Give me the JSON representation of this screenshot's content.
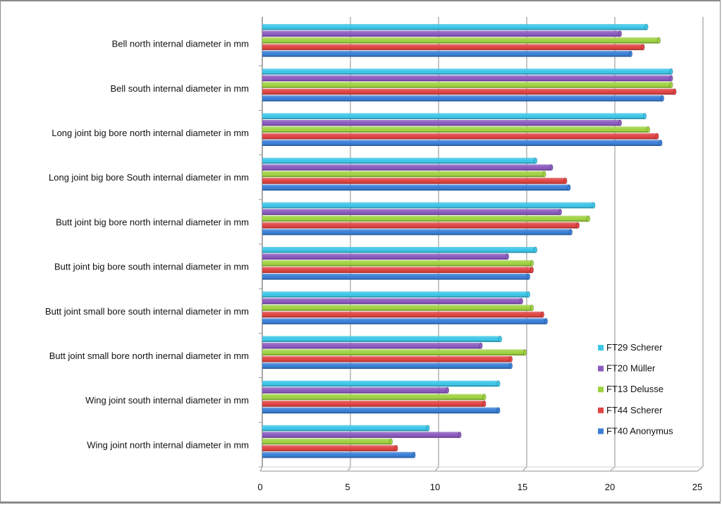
{
  "chart_data": {
    "type": "bar",
    "orientation": "horizontal",
    "title": "",
    "xlabel": "",
    "ylabel": "",
    "xlim": [
      0,
      25
    ],
    "xticks": [
      0,
      5,
      10,
      15,
      20,
      25
    ],
    "grid": true,
    "legend_position": "bottom-right",
    "categories": [
      "Bell north internal diameter in mm",
      "Bell south internal diameter in mm",
      "Long  joint big bore north internal diameter in mm",
      "Long joint big bore South internal diameter in mm",
      "Butt joint big bore north internal diameter in mm",
      "Butt joint big bore south internal diameter in mm",
      "Butt joint small bore south internal diameter in mm",
      "Butt joint small bore north inernal diameter in mm",
      "Wing joint south internal diameter in mm",
      "Wing joint north internal diameter in mm"
    ],
    "series": [
      {
        "name": "FT29 Scherer",
        "color": "#3ec6e8",
        "values": [
          21.8,
          23.2,
          21.7,
          15.5,
          18.8,
          15.5,
          15.1,
          13.5,
          13.4,
          9.4
        ]
      },
      {
        "name": "FT20 Müller",
        "color": "#8c5cc0",
        "values": [
          20.3,
          23.2,
          20.3,
          16.4,
          16.9,
          13.9,
          14.7,
          12.4,
          10.5,
          11.2
        ]
      },
      {
        "name": "FT13 Delusse",
        "color": "#9fd242",
        "values": [
          22.5,
          23.2,
          21.9,
          16.0,
          18.5,
          15.3,
          15.3,
          14.9,
          12.6,
          7.3
        ]
      },
      {
        "name": "FT44 Scherer",
        "color": "#e04545",
        "values": [
          21.6,
          23.4,
          22.4,
          17.2,
          17.9,
          15.3,
          15.9,
          14.1,
          12.6,
          7.6
        ]
      },
      {
        "name": "FT40 Anonymus",
        "color": "#3b7fd6",
        "values": [
          20.9,
          22.7,
          22.6,
          17.4,
          17.5,
          15.1,
          16.1,
          14.1,
          13.4,
          8.6
        ]
      }
    ]
  }
}
